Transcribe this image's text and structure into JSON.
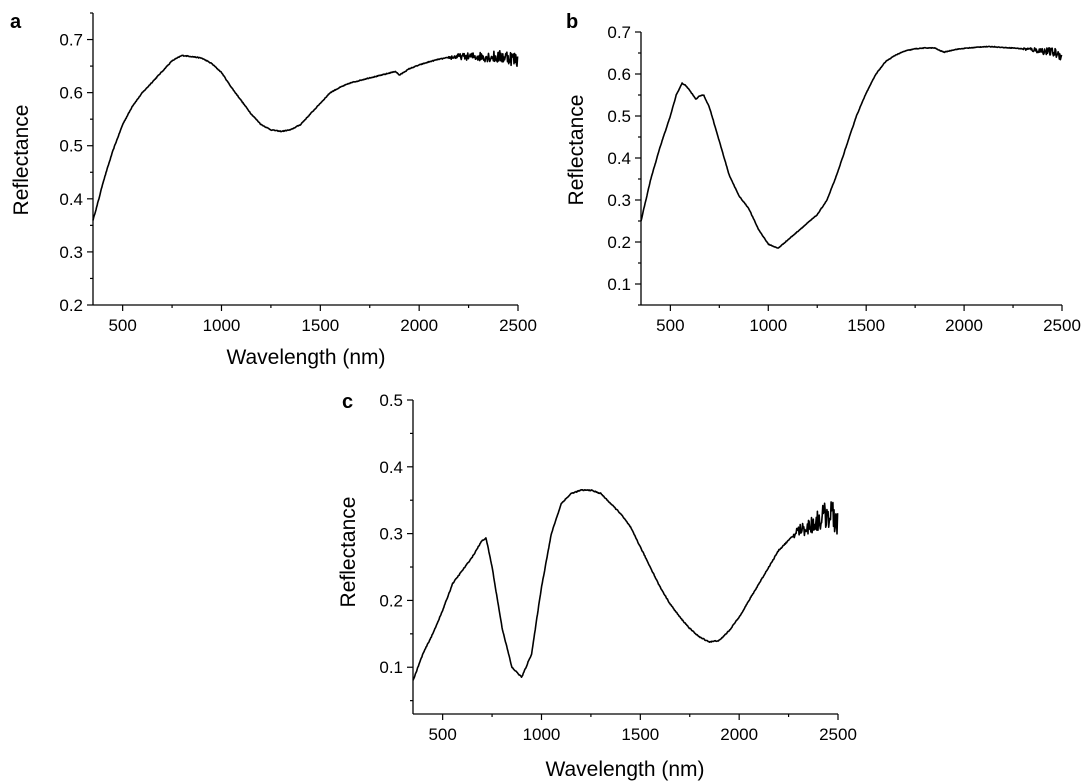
{
  "chart_data": [
    {
      "type": "line",
      "panel_label": "a",
      "xlabel": "Wavelength (nm)",
      "ylabel": "Reflectance",
      "xlim": [
        350,
        2500
      ],
      "ylim": [
        0.2,
        0.75
      ],
      "xticks": [
        500,
        1000,
        1500,
        2000,
        2500
      ],
      "yticks": [
        0.2,
        0.3,
        0.4,
        0.5,
        0.6,
        0.7
      ],
      "ytick_labels": [
        "0.2",
        "0.3",
        "0.4",
        "0.5",
        "0.6",
        "0.7"
      ],
      "grid": false,
      "noise_start": 2150,
      "noise_amplitude": 0.012,
      "x": [
        350,
        380,
        400,
        450,
        500,
        550,
        600,
        650,
        700,
        750,
        800,
        850,
        900,
        950,
        1000,
        1050,
        1100,
        1150,
        1200,
        1250,
        1300,
        1350,
        1400,
        1450,
        1500,
        1550,
        1600,
        1650,
        1700,
        1750,
        1800,
        1850,
        1880,
        1900,
        1950,
        2000,
        2050,
        2100,
        2150,
        2200,
        2250,
        2300,
        2350,
        2400,
        2450,
        2500
      ],
      "y": [
        0.36,
        0.4,
        0.43,
        0.49,
        0.54,
        0.575,
        0.6,
        0.62,
        0.64,
        0.66,
        0.67,
        0.668,
        0.665,
        0.655,
        0.638,
        0.61,
        0.585,
        0.56,
        0.54,
        0.53,
        0.527,
        0.53,
        0.54,
        0.56,
        0.58,
        0.6,
        0.61,
        0.618,
        0.623,
        0.628,
        0.632,
        0.637,
        0.64,
        0.633,
        0.645,
        0.652,
        0.658,
        0.663,
        0.666,
        0.668,
        0.668,
        0.668,
        0.668,
        0.667,
        0.668,
        0.66
      ]
    },
    {
      "type": "line",
      "panel_label": "b",
      "xlabel": "",
      "ylabel": "Reflectance",
      "xlim": [
        350,
        2500
      ],
      "ylim": [
        0.05,
        0.7
      ],
      "xticks": [
        500,
        1000,
        1500,
        2000,
        2500
      ],
      "yticks": [
        0.1,
        0.2,
        0.3,
        0.4,
        0.5,
        0.6,
        0.7
      ],
      "ytick_labels": [
        "0.1",
        "0.2",
        "0.3",
        "0.4",
        "0.5",
        "0.6",
        "0.7"
      ],
      "grid": false,
      "noise_start": 2300,
      "noise_amplitude": 0.01,
      "x": [
        350,
        400,
        450,
        500,
        530,
        560,
        580,
        600,
        630,
        650,
        670,
        700,
        750,
        800,
        850,
        900,
        950,
        1000,
        1050,
        1100,
        1150,
        1200,
        1250,
        1300,
        1350,
        1400,
        1450,
        1500,
        1550,
        1600,
        1650,
        1700,
        1750,
        1800,
        1850,
        1880,
        1900,
        1950,
        2000,
        2050,
        2100,
        2150,
        2200,
        2250,
        2300,
        2350,
        2400,
        2450,
        2500
      ],
      "y": [
        0.25,
        0.35,
        0.43,
        0.5,
        0.55,
        0.578,
        0.572,
        0.56,
        0.54,
        0.548,
        0.55,
        0.52,
        0.44,
        0.36,
        0.31,
        0.28,
        0.23,
        0.195,
        0.185,
        0.205,
        0.225,
        0.245,
        0.265,
        0.3,
        0.36,
        0.43,
        0.5,
        0.555,
        0.6,
        0.63,
        0.645,
        0.655,
        0.66,
        0.662,
        0.662,
        0.655,
        0.652,
        0.658,
        0.661,
        0.663,
        0.665,
        0.665,
        0.663,
        0.662,
        0.66,
        0.658,
        0.655,
        0.652,
        0.645
      ]
    },
    {
      "type": "line",
      "panel_label": "c",
      "xlabel": "Wavelength (nm)",
      "ylabel": "Reflectance",
      "xlim": [
        350,
        2500
      ],
      "ylim": [
        0.03,
        0.5
      ],
      "xticks": [
        500,
        1000,
        1500,
        2000,
        2500
      ],
      "yticks": [
        0.1,
        0.2,
        0.3,
        0.4,
        0.5
      ],
      "ytick_labels": [
        "0.1",
        "0.2",
        "0.3",
        "0.4",
        "0.5"
      ],
      "grid": false,
      "noise_start": 2270,
      "noise_amplitude": 0.02,
      "x": [
        350,
        400,
        450,
        500,
        550,
        600,
        650,
        700,
        720,
        750,
        800,
        850,
        900,
        950,
        1000,
        1050,
        1100,
        1150,
        1200,
        1250,
        1300,
        1350,
        1400,
        1450,
        1500,
        1550,
        1600,
        1650,
        1700,
        1750,
        1800,
        1850,
        1900,
        1950,
        2000,
        2050,
        2100,
        2150,
        2200,
        2250,
        2300,
        2350,
        2400,
        2450,
        2500
      ],
      "y": [
        0.08,
        0.12,
        0.15,
        0.185,
        0.225,
        0.245,
        0.265,
        0.29,
        0.293,
        0.25,
        0.16,
        0.1,
        0.085,
        0.12,
        0.22,
        0.3,
        0.345,
        0.36,
        0.365,
        0.365,
        0.36,
        0.345,
        0.33,
        0.31,
        0.28,
        0.25,
        0.22,
        0.195,
        0.175,
        0.158,
        0.145,
        0.138,
        0.14,
        0.155,
        0.175,
        0.2,
        0.225,
        0.25,
        0.275,
        0.29,
        0.305,
        0.31,
        0.32,
        0.33,
        0.32
      ]
    }
  ]
}
